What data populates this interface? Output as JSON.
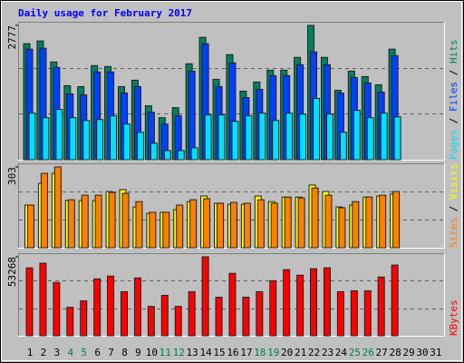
{
  "chart_data": [
    {
      "type": "bar",
      "title": "Daily usage for February 2017",
      "label_separator": " / ",
      "grid_divisions": 3,
      "ylim": [
        0,
        2777
      ],
      "yticks": [
        2777
      ],
      "series": [
        {
          "name": "Hits",
          "color": "#008060",
          "values": [
            2399,
            2456,
            2021,
            1530,
            1511,
            1946,
            1927,
            1511,
            1644,
            1115,
            869,
            1077,
            1984,
            2531,
            1662,
            2172,
            1417,
            1606,
            1851,
            1851,
            2116,
            2777,
            2116,
            1436,
            1832,
            1719,
            1549,
            2286,
            null,
            null,
            null
          ]
        },
        {
          "name": "Files",
          "color": "#0040ff",
          "values": [
            2286,
            2305,
            1908,
            1360,
            1341,
            1814,
            1814,
            1379,
            1511,
            982,
            737,
            907,
            1832,
            2399,
            1511,
            2002,
            1285,
            1455,
            1738,
            1738,
            1965,
            2229,
            1965,
            1379,
            1700,
            1587,
            1398,
            2153,
            null,
            null,
            null
          ]
        },
        {
          "name": "Pages",
          "color": "#00e0ff",
          "values": [
            963,
            869,
            1039,
            869,
            812,
            831,
            907,
            737,
            567,
            340,
            189,
            189,
            246,
            926,
            926,
            793,
            907,
            963,
            812,
            963,
            944,
            1266,
            944,
            567,
            1020,
            869,
            963,
            888,
            null,
            null,
            null
          ]
        }
      ]
    },
    {
      "type": "bar",
      "label_separator": " / ",
      "grid_divisions": 3,
      "ylim": [
        0,
        303
      ],
      "yticks": [
        303
      ],
      "series": [
        {
          "name": "Visits",
          "color": "#ffff00",
          "values": [
            160,
            241,
            279,
            177,
            177,
            177,
            211,
            218,
            153,
            129,
            133,
            143,
            173,
            194,
            167,
            163,
            163,
            194,
            173,
            190,
            190,
            235,
            211,
            153,
            160,
            190,
            194,
            201,
            null,
            null,
            null
          ]
        },
        {
          "name": "Sites",
          "color": "#ff8000",
          "values": [
            160,
            279,
            303,
            180,
            197,
            197,
            207,
            204,
            173,
            133,
            133,
            160,
            180,
            184,
            167,
            170,
            167,
            180,
            167,
            190,
            187,
            224,
            197,
            150,
            173,
            190,
            197,
            211,
            null,
            null,
            null
          ]
        }
      ]
    },
    {
      "type": "bar",
      "grid_divisions": 3,
      "ylim": [
        0,
        53268
      ],
      "yticks": [
        53268
      ],
      "categories": [
        "1",
        "2",
        "3",
        "4",
        "5",
        "6",
        "7",
        "8",
        "9",
        "10",
        "11",
        "12",
        "13",
        "14",
        "15",
        "16",
        "17",
        "18",
        "19",
        "20",
        "21",
        "22",
        "23",
        "24",
        "25",
        "26",
        "27",
        "28",
        "29",
        "30",
        "31"
      ],
      "category_colors": [
        "#000000",
        "#000000",
        "#000000",
        "#008040",
        "#008040",
        "#000000",
        "#000000",
        "#000000",
        "#000000",
        "#000000",
        "#008040",
        "#008040",
        "#000000",
        "#000000",
        "#000000",
        "#000000",
        "#000000",
        "#008040",
        "#008040",
        "#000000",
        "#000000",
        "#000000",
        "#000000",
        "#000000",
        "#008040",
        "#008040",
        "#000000",
        "#000000",
        "#000000",
        "#000000",
        "#000000"
      ],
      "series": [
        {
          "name": "KBytes",
          "color": "#ff0000",
          "values": [
            45836,
            48933,
            35925,
            19201,
            23537,
            38403,
            40261,
            29731,
            39022,
            19821,
            27254,
            19821,
            29731,
            53268,
            26015,
            42119,
            26015,
            29731,
            37164,
            44597,
            40880,
            45216,
            45836,
            29731,
            30351,
            30351,
            39642,
            47694,
            null,
            null,
            null
          ]
        }
      ]
    }
  ]
}
